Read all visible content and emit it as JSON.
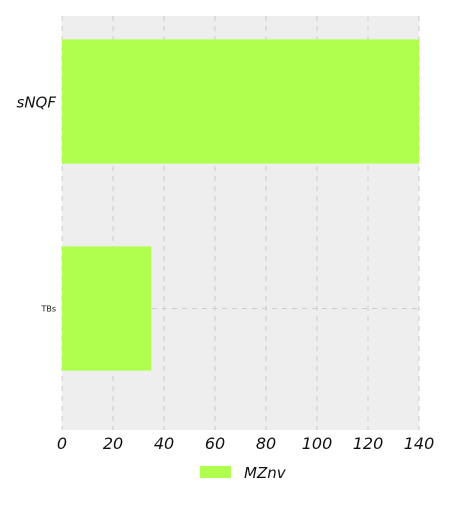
{
  "chart_data": {
    "type": "bar",
    "orientation": "horizontal",
    "categories": [
      "sNQF",
      "TBs"
    ],
    "series": [
      {
        "name": "MZnv",
        "values": [
          140,
          35
        ],
        "color": "#b0ff4f"
      }
    ],
    "xlim": [
      0,
      140
    ],
    "xticks": [
      0,
      20,
      40,
      60,
      80,
      100,
      120,
      140
    ],
    "tick_labels": [
      "0",
      "20",
      "40",
      "60",
      "80",
      "100",
      "120",
      "140"
    ],
    "grid": true,
    "background_color": "#eeeeee",
    "grid_color": "#cccccc",
    "legend_position": "bottom-center"
  }
}
